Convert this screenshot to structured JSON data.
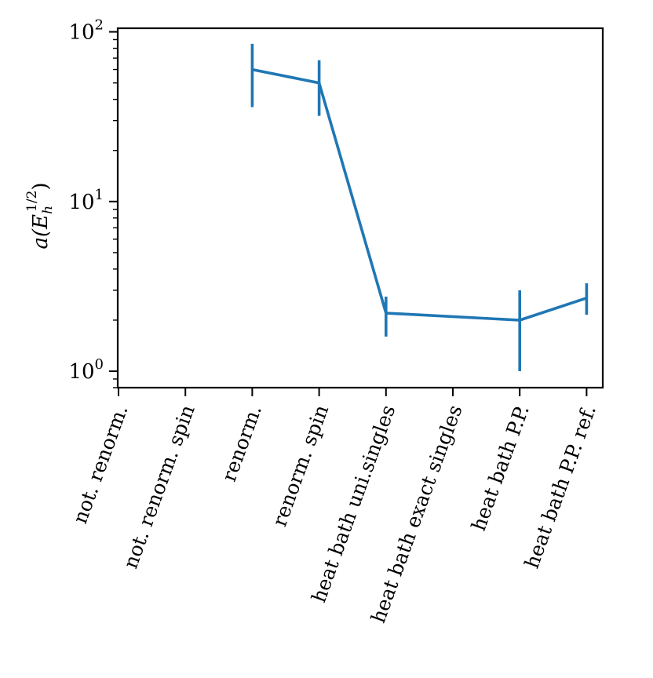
{
  "chart_data": {
    "type": "line",
    "title": "",
    "xlabel": "",
    "ylabel": "a(E_h^{1/2})",
    "ylabel_parts": {
      "base": "a(E",
      "sub": "h",
      "sup": "1/2",
      "close": ")"
    },
    "yscale": "log",
    "ylim": [
      0.8,
      105
    ],
    "yticks": [
      {
        "value": 1,
        "base": "10",
        "exp": "0"
      },
      {
        "value": 10,
        "base": "10",
        "exp": "1"
      },
      {
        "value": 100,
        "base": "10",
        "exp": "2"
      }
    ],
    "categories": [
      "not. renorm.",
      "not. renorm. spin",
      "renorm.",
      "renorm. spin",
      "heat bath uni.singles",
      "heat bath exact singles",
      "heat bath P.P.",
      "heat bath P.P. ref."
    ],
    "series": [
      {
        "color": "#1f77b4",
        "values": [
          null,
          null,
          60,
          50,
          2.2,
          null,
          2.0,
          2.7
        ],
        "error_low": [
          null,
          null,
          36,
          32,
          1.6,
          null,
          1.0,
          2.15
        ],
        "error_high": [
          null,
          null,
          85,
          68,
          2.75,
          null,
          3.0,
          3.3
        ]
      }
    ],
    "grid": false,
    "legend": "none"
  }
}
